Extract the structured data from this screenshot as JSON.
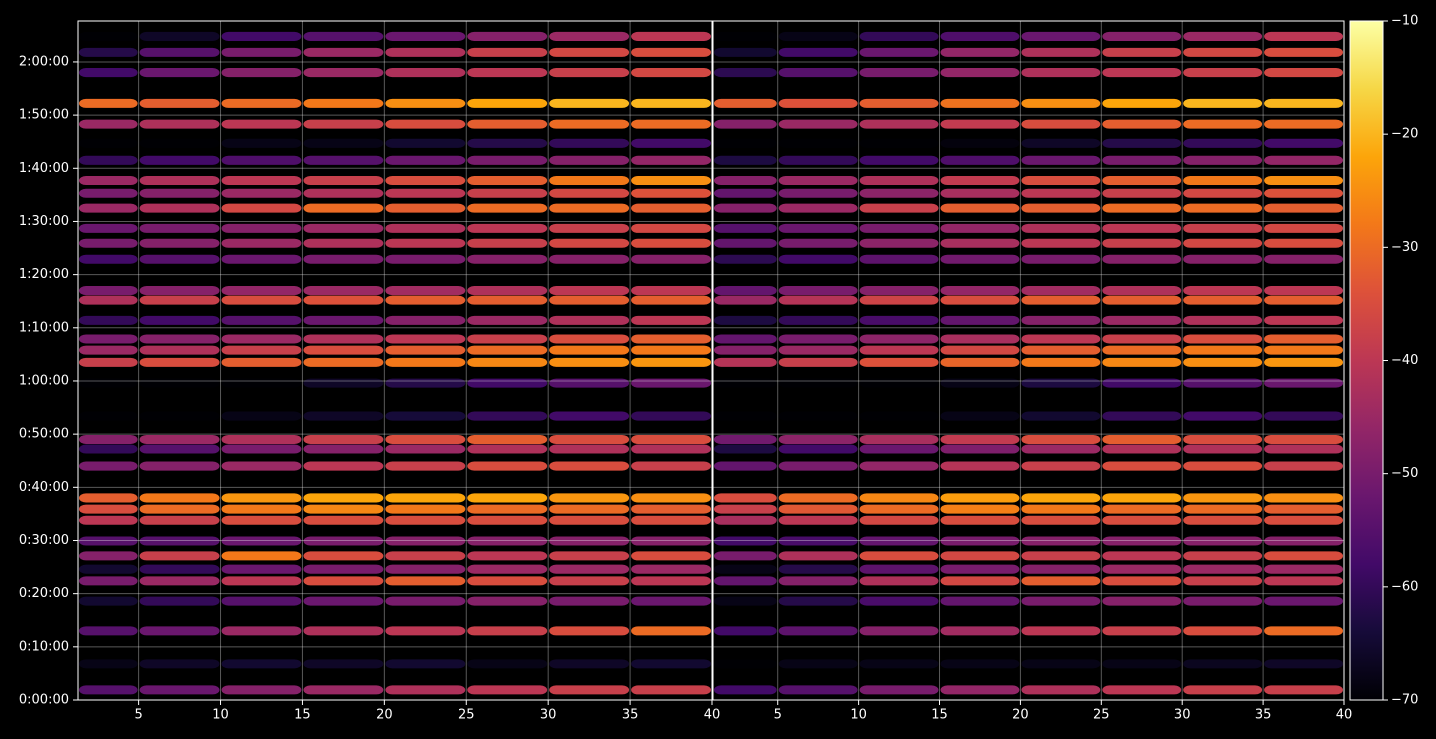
{
  "chart_data": [
    {
      "type": "heatmap",
      "colormap": "inferno",
      "grid": true,
      "bins": [
        1.3,
        5,
        10,
        15,
        20,
        25,
        30,
        35,
        40
      ],
      "xlim": [
        1.3,
        40
      ],
      "xticks": [
        5,
        10,
        15,
        20,
        25,
        30,
        35,
        40
      ],
      "ylim": [
        0,
        127.7
      ],
      "yticks": [
        {
          "value": 0,
          "label": "0:00:00"
        },
        {
          "value": 10,
          "label": "0:10:00"
        },
        {
          "value": 20,
          "label": "0:20:00"
        },
        {
          "value": 30,
          "label": "0:30:00"
        },
        {
          "value": 40,
          "label": "0:40:00"
        },
        {
          "value": 50,
          "label": "0:50:00"
        },
        {
          "value": 60,
          "label": "1:00:00"
        },
        {
          "value": 70,
          "label": "1:10:00"
        },
        {
          "value": 80,
          "label": "1:20:00"
        },
        {
          "value": 90,
          "label": "1:30:00"
        },
        {
          "value": 100,
          "label": "1:40:00"
        },
        {
          "value": 110,
          "label": "1:50:00"
        },
        {
          "value": 120,
          "label": "2:00:00"
        }
      ],
      "rows": [
        1.9,
        6.8,
        13,
        18.6,
        22.4,
        24.6,
        27.1,
        29.9,
        33.8,
        35.9,
        38,
        44,
        47.2,
        49,
        53.4,
        59.6,
        63.5,
        65.8,
        67.9,
        71.4,
        75.2,
        77,
        82.9,
        85.9,
        88.7,
        92.5,
        95.3,
        97.7,
        101.5,
        104.7,
        108.3,
        112.2,
        118,
        121.8,
        124.8
      ],
      "values": [
        [
          -55,
          -52,
          -48,
          -45,
          -42,
          -40,
          -38,
          -38
        ],
        [
          -68,
          -66,
          -65,
          -66,
          -65,
          -68,
          -66,
          -65
        ],
        [
          -55,
          -52,
          -45,
          -42,
          -40,
          -38,
          -35,
          -30
        ],
        [
          -65,
          -60,
          -55,
          -52,
          -50,
          -48,
          -50,
          -52
        ],
        [
          -50,
          -45,
          -40,
          -35,
          -32,
          -35,
          -38,
          -40
        ],
        [
          -65,
          -60,
          -52,
          -50,
          -48,
          -45,
          -45,
          -45
        ],
        [
          -48,
          -38,
          -28,
          -35,
          -38,
          -40,
          -38,
          -35
        ],
        [
          -55,
          -55,
          -52,
          -50,
          -48,
          -48,
          -48,
          -48
        ],
        [
          -40,
          -38,
          -35,
          -35,
          -35,
          -35,
          -35,
          -35
        ],
        [
          -35,
          -30,
          -28,
          -26,
          -28,
          -30,
          -30,
          -32
        ],
        [
          -32,
          -28,
          -24,
          -22,
          -22,
          -22,
          -24,
          -25
        ],
        [
          -50,
          -48,
          -45,
          -40,
          -38,
          -35,
          -35,
          -38
        ],
        [
          -60,
          -55,
          -50,
          -48,
          -45,
          -42,
          -42,
          -42
        ],
        [
          -48,
          -45,
          -42,
          -38,
          -35,
          -32,
          -35,
          -35
        ],
        [
          -70,
          -70,
          -68,
          -66,
          -64,
          -60,
          -58,
          -60
        ],
        [
          -70,
          -70,
          -70,
          -66,
          -62,
          -58,
          -55,
          -52
        ],
        [
          -38,
          -35,
          -32,
          -30,
          -28,
          -26,
          -25,
          -24
        ],
        [
          -45,
          -42,
          -38,
          -35,
          -32,
          -30,
          -28,
          -28
        ],
        [
          -50,
          -48,
          -45,
          -42,
          -40,
          -38,
          -35,
          -32
        ],
        [
          -60,
          -58,
          -55,
          -52,
          -48,
          -45,
          -42,
          -40
        ],
        [
          -42,
          -38,
          -35,
          -34,
          -32,
          -32,
          -32,
          -32
        ],
        [
          -50,
          -48,
          -46,
          -45,
          -44,
          -42,
          -40,
          -40
        ],
        [
          -58,
          -55,
          -52,
          -50,
          -50,
          -48,
          -48,
          -48
        ],
        [
          -50,
          -48,
          -45,
          -42,
          -40,
          -38,
          -36,
          -35
        ],
        [
          -52,
          -50,
          -48,
          -45,
          -42,
          -40,
          -38,
          -36
        ],
        [
          -45,
          -42,
          -36,
          -30,
          -32,
          -30,
          -30,
          -32
        ],
        [
          -50,
          -48,
          -45,
          -42,
          -40,
          -38,
          -36,
          -34
        ],
        [
          -45,
          -42,
          -40,
          -38,
          -35,
          -32,
          -28,
          -25
        ],
        [
          -60,
          -58,
          -56,
          -55,
          -52,
          -50,
          -48,
          -46
        ],
        [
          -70,
          -70,
          -68,
          -68,
          -65,
          -62,
          -60,
          -58
        ],
        [
          -45,
          -42,
          -40,
          -38,
          -35,
          -32,
          -30,
          -30
        ],
        [
          -30,
          -32,
          -30,
          -28,
          -25,
          -22,
          -20,
          -20
        ],
        [
          -58,
          -52,
          -48,
          -45,
          -42,
          -40,
          -38,
          -36
        ],
        [
          -62,
          -55,
          -50,
          -45,
          -42,
          -38,
          -36,
          -35
        ],
        [
          -70,
          -66,
          -58,
          -55,
          -52,
          -48,
          -45,
          -40
        ]
      ]
    },
    {
      "type": "heatmap",
      "colormap": "inferno",
      "grid": true,
      "bins": [
        1,
        5,
        10,
        15,
        20,
        25,
        30,
        35,
        40
      ],
      "xlim": [
        1,
        40
      ],
      "xticks": [
        5,
        10,
        15,
        20,
        25,
        30,
        35,
        40
      ],
      "ylim": [
        0,
        127.7
      ],
      "rows": [
        1.9,
        6.8,
        13,
        18.6,
        22.4,
        24.6,
        27.1,
        29.9,
        33.8,
        35.9,
        38,
        44,
        47.2,
        49,
        53.4,
        59.6,
        63.5,
        65.8,
        67.9,
        71.4,
        75.2,
        77,
        82.9,
        85.9,
        88.7,
        92.5,
        95.3,
        97.7,
        101.5,
        104.7,
        108.3,
        112.2,
        118,
        121.8,
        124.8
      ],
      "values": [
        [
          -58,
          -55,
          -50,
          -46,
          -42,
          -40,
          -38,
          -38
        ],
        [
          -70,
          -68,
          -68,
          -68,
          -68,
          -68,
          -67,
          -66
        ],
        [
          -58,
          -54,
          -48,
          -44,
          -40,
          -38,
          -35,
          -30
        ],
        [
          -68,
          -62,
          -57,
          -53,
          -50,
          -48,
          -50,
          -52
        ],
        [
          -53,
          -48,
          -42,
          -36,
          -32,
          -35,
          -38,
          -40
        ],
        [
          -68,
          -62,
          -54,
          -50,
          -48,
          -45,
          -45,
          -45
        ],
        [
          -50,
          -42,
          -35,
          -36,
          -38,
          -40,
          -38,
          -35
        ],
        [
          -58,
          -57,
          -53,
          -50,
          -48,
          -48,
          -48,
          -48
        ],
        [
          -43,
          -40,
          -36,
          -35,
          -35,
          -35,
          -35,
          -35
        ],
        [
          -38,
          -33,
          -30,
          -27,
          -28,
          -30,
          -30,
          -32
        ],
        [
          -35,
          -30,
          -26,
          -23,
          -22,
          -22,
          -24,
          -25
        ],
        [
          -53,
          -50,
          -46,
          -41,
          -38,
          -35,
          -35,
          -38
        ],
        [
          -63,
          -58,
          -52,
          -49,
          -45,
          -42,
          -42,
          -42
        ],
        [
          -51,
          -47,
          -43,
          -39,
          -35,
          -32,
          -35,
          -35
        ],
        [
          -70,
          -70,
          -70,
          -68,
          -65,
          -60,
          -58,
          -60
        ],
        [
          -70,
          -70,
          -70,
          -68,
          -63,
          -58,
          -55,
          -52
        ],
        [
          -41,
          -38,
          -34,
          -31,
          -28,
          -26,
          -25,
          -24
        ],
        [
          -48,
          -45,
          -40,
          -36,
          -32,
          -30,
          -28,
          -28
        ],
        [
          -53,
          -50,
          -47,
          -43,
          -40,
          -38,
          -35,
          -32
        ],
        [
          -63,
          -60,
          -57,
          -53,
          -48,
          -45,
          -42,
          -40
        ],
        [
          -45,
          -41,
          -37,
          -35,
          -32,
          -32,
          -32,
          -32
        ],
        [
          -53,
          -50,
          -48,
          -46,
          -44,
          -42,
          -40,
          -40
        ],
        [
          -61,
          -58,
          -54,
          -51,
          -50,
          -48,
          -48,
          -48
        ],
        [
          -53,
          -50,
          -47,
          -43,
          -40,
          -38,
          -36,
          -35
        ],
        [
          -55,
          -52,
          -50,
          -46,
          -42,
          -40,
          -38,
          -36
        ],
        [
          -48,
          -45,
          -38,
          -32,
          -32,
          -30,
          -30,
          -32
        ],
        [
          -53,
          -50,
          -47,
          -43,
          -40,
          -38,
          -36,
          -34
        ],
        [
          -48,
          -45,
          -42,
          -39,
          -35,
          -32,
          -28,
          -25
        ],
        [
          -63,
          -60,
          -58,
          -56,
          -52,
          -50,
          -48,
          -46
        ],
        [
          -70,
          -70,
          -70,
          -69,
          -66,
          -62,
          -60,
          -58
        ],
        [
          -48,
          -45,
          -42,
          -39,
          -35,
          -32,
          -30,
          -30
        ],
        [
          -32,
          -34,
          -32,
          -29,
          -25,
          -22,
          -20,
          -20
        ],
        [
          -61,
          -55,
          -50,
          -46,
          -42,
          -40,
          -38,
          -36
        ],
        [
          -65,
          -58,
          -52,
          -46,
          -42,
          -38,
          -36,
          -35
        ],
        [
          -70,
          -68,
          -60,
          -56,
          -52,
          -48,
          -45,
          -40
        ]
      ]
    }
  ],
  "colorbar": {
    "lim": [
      -70,
      -10
    ],
    "ticks": [
      {
        "value": -70,
        "label": "−70"
      },
      {
        "value": -60,
        "label": "−60"
      },
      {
        "value": -50,
        "label": "−50"
      },
      {
        "value": -40,
        "label": "−40"
      },
      {
        "value": -30,
        "label": "−30"
      },
      {
        "value": -20,
        "label": "−20"
      },
      {
        "value": -10,
        "label": "−10"
      }
    ]
  }
}
